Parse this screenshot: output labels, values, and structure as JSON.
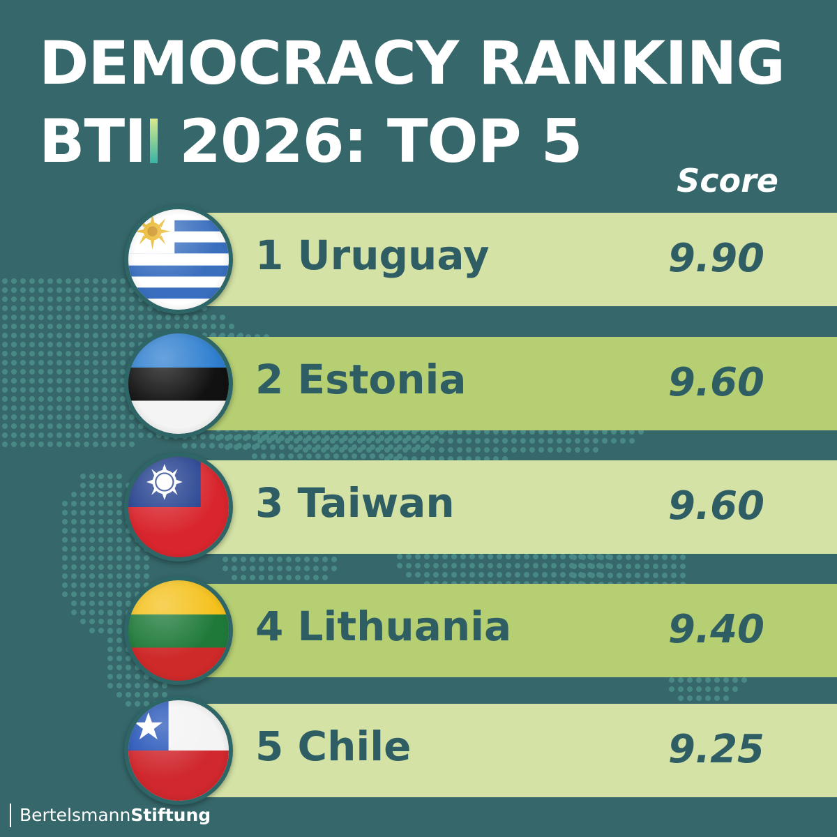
{
  "title": {
    "line1": "DEMOCRACY RANKING",
    "line2_prefix": "BTI",
    "line2_suffix": "2026: TOP 5"
  },
  "score_header": "Score",
  "colors": {
    "background": "#36676a",
    "row_light": "#d4e2a5",
    "row_dark": "#b6cf73",
    "text_dark": "#2f5d64"
  },
  "chart_data": {
    "type": "table",
    "title": "DEMOCRACY RANKING BTI 2026: TOP 5",
    "columns": [
      "",
      "Score"
    ],
    "rows": [
      {
        "rank": "1",
        "country": "Uruguay",
        "score": "9.90",
        "flag": "uruguay-flag-icon"
      },
      {
        "rank": "2",
        "country": "Estonia",
        "score": "9.60",
        "flag": "estonia-flag-icon"
      },
      {
        "rank": "3",
        "country": "Taiwan",
        "score": "9.60",
        "flag": "taiwan-flag-icon"
      },
      {
        "rank": "4",
        "country": "Lithuania",
        "score": "9.40",
        "flag": "lithuania-flag-icon"
      },
      {
        "rank": "5",
        "country": "Chile",
        "score": "9.25",
        "flag": "chile-flag-icon"
      }
    ]
  },
  "rows": [
    {
      "label": "1 Uruguay",
      "score": "9.90"
    },
    {
      "label": "2 Estonia",
      "score": "9.60"
    },
    {
      "label": "3 Taiwan",
      "score": "9.60"
    },
    {
      "label": "4 Lithuania",
      "score": "9.40"
    },
    {
      "label": "5 Chile",
      "score": "9.25"
    }
  ],
  "footer": {
    "brand_part1": "Bertelsmann",
    "brand_part2": "Stiftung"
  }
}
